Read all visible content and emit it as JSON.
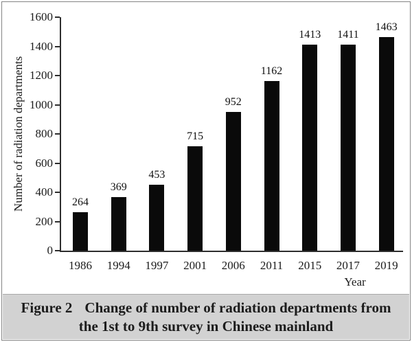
{
  "figure": {
    "caption_label": "Figure 2",
    "caption_line1": "Change of number of radiation departments from",
    "caption_line2": "the 1st to 9th survey in Chinese mainland"
  },
  "chart_data": {
    "type": "bar",
    "categories": [
      "1986",
      "1994",
      "1997",
      "2001",
      "2006",
      "2011",
      "2015",
      "2017",
      "2019"
    ],
    "values": [
      264,
      369,
      453,
      715,
      952,
      1162,
      1413,
      1411,
      1463
    ],
    "title": "",
    "xlabel": "Year",
    "ylabel": "Number of radiation departments",
    "ylim": [
      0,
      1600
    ],
    "ytick_step": 200,
    "value_labels_shown": true,
    "grid": false,
    "legend": "none",
    "bar_color": "#0a0a0a",
    "axis_color": "#2d2d2d",
    "caption_bg_color": "#d2d2d2",
    "border_color": "#838383"
  }
}
